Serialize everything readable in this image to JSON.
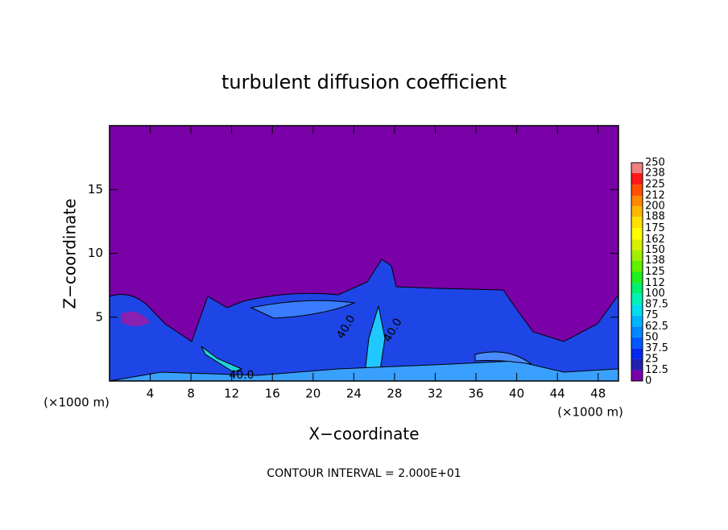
{
  "chart_data": {
    "type": "contour",
    "title": "turbulent diffusion coefficient",
    "x_label": "X−coordinate",
    "y_label": "Z−coordinate",
    "x_unit_left": "(×1000 m)",
    "x_unit_right": "(×1000 m)",
    "xlim": [
      0,
      50
    ],
    "xticks": [
      4,
      8,
      12,
      16,
      20,
      24,
      28,
      32,
      36,
      40,
      44,
      48
    ],
    "ylim": [
      0,
      20
    ],
    "yticks": [
      5,
      10,
      15
    ],
    "colorbar": {
      "levels": [
        0,
        12.5,
        25,
        37.5,
        50,
        62.5,
        75,
        87.5,
        100,
        112,
        125,
        138,
        150,
        162,
        175,
        188,
        200,
        212,
        225,
        238,
        250
      ],
      "colors": [
        "#7a00a8",
        "#2020b0",
        "#0028f0",
        "#0058ff",
        "#0088ff",
        "#00b4ff",
        "#00dcf0",
        "#00f0b8",
        "#00f070",
        "#20f020",
        "#60f000",
        "#a0f000",
        "#d8f000",
        "#ffff00",
        "#ffe000",
        "#ffb800",
        "#ff8800",
        "#ff5000",
        "#ff1818",
        "#f08080"
      ]
    },
    "annotations": [
      "40.0",
      "40.0",
      "40.0"
    ],
    "footer": "CONTOUR INTERVAL = 2.000E+01"
  }
}
